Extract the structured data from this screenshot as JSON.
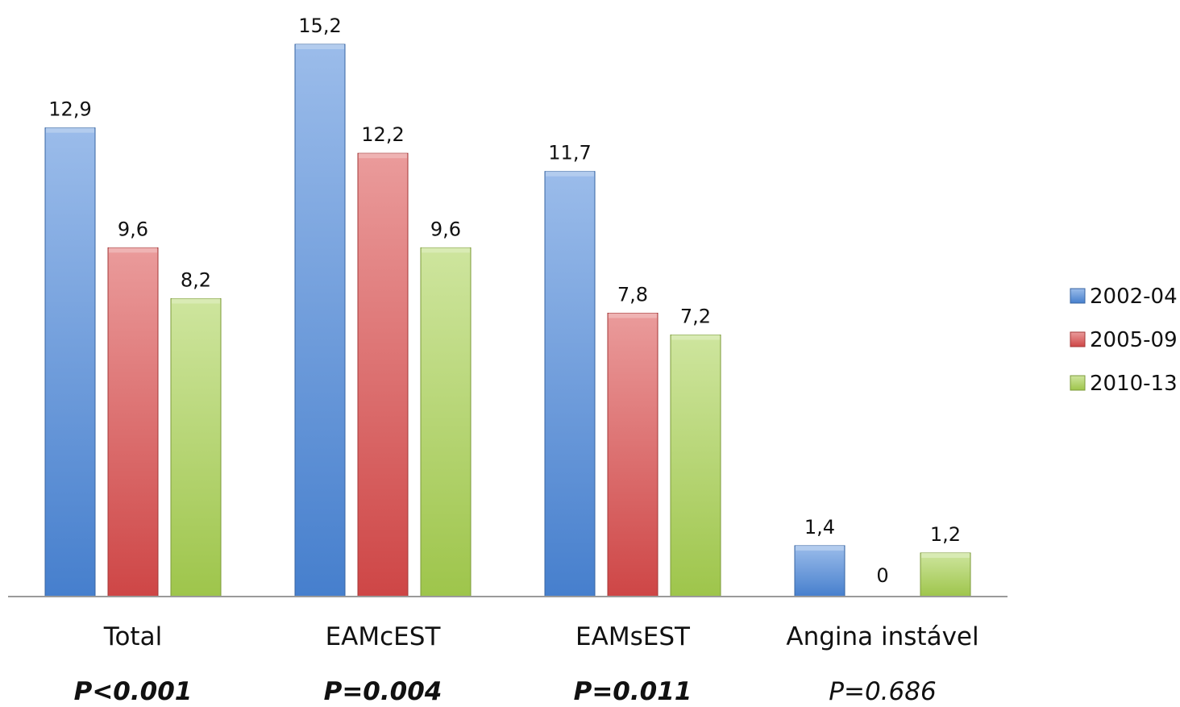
{
  "chart_data": {
    "type": "bar",
    "categories": [
      "Total",
      "EAMcEST",
      "EAMsEST",
      "Angina instável"
    ],
    "p_values": [
      {
        "text": "P<0.001",
        "bold": true
      },
      {
        "text": "P=0.004",
        "bold": true
      },
      {
        "text": "P=0.011",
        "bold": true
      },
      {
        "text": "P=0.686",
        "bold": false
      }
    ],
    "series": [
      {
        "name": "2002-04",
        "values": [
          12.9,
          15.2,
          11.7,
          1.4
        ],
        "labels": [
          "12,9",
          "15,2",
          "11,7",
          "1,4"
        ],
        "color": "#4a86d8"
      },
      {
        "name": "2005-09",
        "values": [
          9.6,
          12.2,
          7.8,
          0
        ],
        "labels": [
          "9,6",
          "12,2",
          "7,8",
          "0"
        ],
        "color": "#d94a4a"
      },
      {
        "name": "2010-13",
        "values": [
          8.2,
          9.6,
          7.2,
          1.2
        ],
        "labels": [
          "8,2",
          "9,6",
          "7,2",
          "1,2"
        ],
        "color": "#a6cf4f"
      }
    ],
    "ylim": [
      0,
      15.2
    ],
    "legend_position": "right",
    "grid": false
  }
}
